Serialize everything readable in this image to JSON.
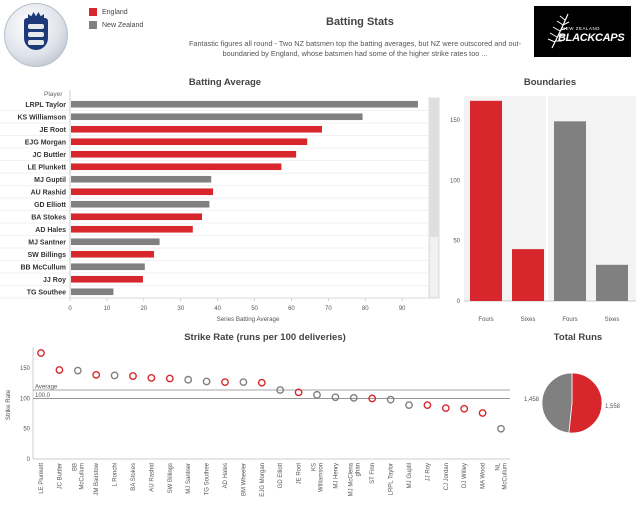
{
  "header": {
    "title": "Batting Stats",
    "subtitle": "Fantastic figures all round - Two NZ batsmen top the batting averages, but NZ were outscored and out-boundaried by England, whose batsmen had some of the higher strike rates too ...",
    "logo_right_text": "BLACKCAPS",
    "logo_right_small": "NEW ZEALAND"
  },
  "legend": [
    {
      "label": "England",
      "color": "#d7272c"
    },
    {
      "label": "New Zealand",
      "color": "#808080"
    }
  ],
  "colors": {
    "england": "#d7272c",
    "newzealand": "#808080"
  },
  "chart_data": [
    {
      "type": "bar",
      "orientation": "horizontal",
      "title": "Batting Average",
      "row_header": "Player",
      "xlabel": "Series Batting Average",
      "xlim": [
        0,
        97
      ],
      "xticks": [
        0,
        10,
        20,
        30,
        40,
        50,
        60,
        70,
        80,
        90
      ],
      "categories": [
        "LRPL Taylor",
        "KS Williamson",
        "JE Root",
        "EJG Morgan",
        "JC Buttler",
        "LE Plunkett",
        "MJ Guptil",
        "AU Rashid",
        "GD Elliott",
        "BA Stokes",
        "AD Hales",
        "MJ Santner",
        "SW Billings",
        "BB McCullum",
        "JJ Roy",
        "TG Southee"
      ],
      "values": [
        94,
        79,
        68,
        64,
        61,
        57,
        38,
        38.5,
        37.5,
        35.5,
        33,
        24,
        22.5,
        20,
        19.5,
        11.5
      ],
      "teams": [
        "New Zealand",
        "New Zealand",
        "England",
        "England",
        "England",
        "England",
        "New Zealand",
        "England",
        "New Zealand",
        "England",
        "England",
        "New Zealand",
        "England",
        "New Zealand",
        "England",
        "New Zealand"
      ]
    },
    {
      "type": "bar",
      "title": "Boundaries",
      "categories": [
        "Fours",
        "Sixes",
        "Fours",
        "Sixes"
      ],
      "teams": [
        "England",
        "England",
        "New Zealand",
        "New Zealand"
      ],
      "values": [
        166,
        43,
        149,
        30
      ],
      "ylim": [
        0,
        170
      ],
      "yticks": [
        0,
        50,
        100,
        150
      ]
    },
    {
      "type": "scatter",
      "title": "Strike Rate (runs per 100 deliveries)",
      "ylabel": "Strike Rate",
      "ylim": [
        0,
        185
      ],
      "yticks": [
        0,
        50,
        100,
        150
      ],
      "reference_lines": [
        {
          "label": "Average",
          "value": 114
        },
        {
          "label": "100.0",
          "value": 100
        }
      ],
      "categories": [
        "LE Plunkett",
        "JC Buttler",
        "BB McCullum",
        "JM Bairstow",
        "L Ronchi",
        "BA Stokes",
        "AU Rashid",
        "SW Billings",
        "MJ Santner",
        "TG Southee",
        "AD Hales",
        "BM Wheeler",
        "EJG Morgan",
        "GD Elliott",
        "JE Root",
        "KS Williamson",
        "MJ Henry",
        "MJ McClenaghan",
        "ST Finn",
        "LRPL Taylor",
        "MJ Guptil",
        "JJ Roy",
        "CJ Jordan",
        "DJ Willey",
        "MA Wood",
        "NL McCullum"
      ],
      "tick_labels": [
        "LE Plunkett",
        "JC Buttler",
        "BB\nMcCullum",
        "JM Bairstow",
        "L Ronchi",
        "BA Stokes",
        "AU Rashid",
        "SW Billings",
        "MJ Santner",
        "TG Southee",
        "AD Hales",
        "BM Wheeler",
        "EJG Morgan",
        "GD Elliott",
        "JE Root",
        "KS\nWilliamson",
        "MJ Henry",
        "MJ McClena\nghan",
        "ST Finn",
        "LRPL Taylor",
        "MJ Guptil",
        "JJ Roy",
        "CJ Jordan",
        "DJ Willey",
        "MA Wood",
        "NL\nMcCullum"
      ],
      "values": [
        175,
        147,
        146,
        139,
        138,
        137,
        134,
        133,
        131,
        128,
        127,
        127,
        126,
        114,
        110,
        106,
        102,
        101,
        100,
        98,
        89,
        89,
        84,
        83,
        76,
        50
      ],
      "teams": [
        "England",
        "England",
        "New Zealand",
        "England",
        "New Zealand",
        "England",
        "England",
        "England",
        "New Zealand",
        "New Zealand",
        "England",
        "New Zealand",
        "England",
        "New Zealand",
        "England",
        "New Zealand",
        "New Zealand",
        "New Zealand",
        "England",
        "New Zealand",
        "New Zealand",
        "England",
        "England",
        "England",
        "England",
        "New Zealand"
      ]
    },
    {
      "type": "pie",
      "title": "Total Runs",
      "categories": [
        "England",
        "New Zealand"
      ],
      "values": [
        1558,
        1458
      ],
      "value_labels": [
        "1,558",
        "1,458"
      ]
    }
  ]
}
